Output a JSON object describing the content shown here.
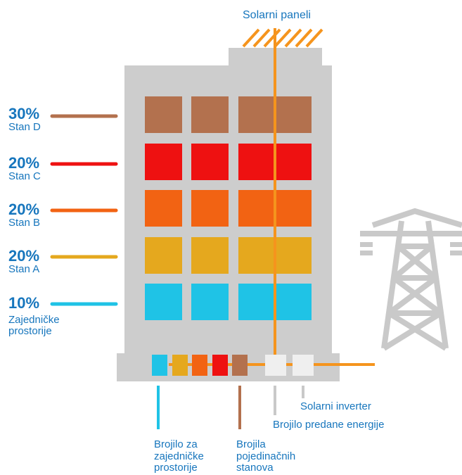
{
  "colors": {
    "building": "#cdcdcd",
    "stan_d": "#b3714e",
    "stan_c": "#ee1111",
    "stan_b": "#f26313",
    "stan_a": "#e5a81e",
    "zajednicke": "#1fc3e6",
    "solar": "#f5941d",
    "text": "#1776bd",
    "meter_white": "#efefef",
    "pylon": "#c9c9c9"
  },
  "solar_label": "Solarni paneli",
  "shares": [
    {
      "percent": "30%",
      "name": "Stan D",
      "value": 30
    },
    {
      "percent": "20%",
      "name": "Stan C",
      "value": 20
    },
    {
      "percent": "20%",
      "name": "Stan B",
      "value": 20
    },
    {
      "percent": "20%",
      "name": "Stan A",
      "value": 20
    },
    {
      "percent": "10%",
      "name": "Zajedničke\nprostorije",
      "value": 10
    }
  ],
  "captions": {
    "solar_inverter": "Solarni inverter",
    "export_meter": "Brojilo predane energije",
    "common_meter": "Brojilo za\nzajedničke\nprostorije",
    "apartment_meters": "Brojila\npojedinačnih\nstanova"
  }
}
